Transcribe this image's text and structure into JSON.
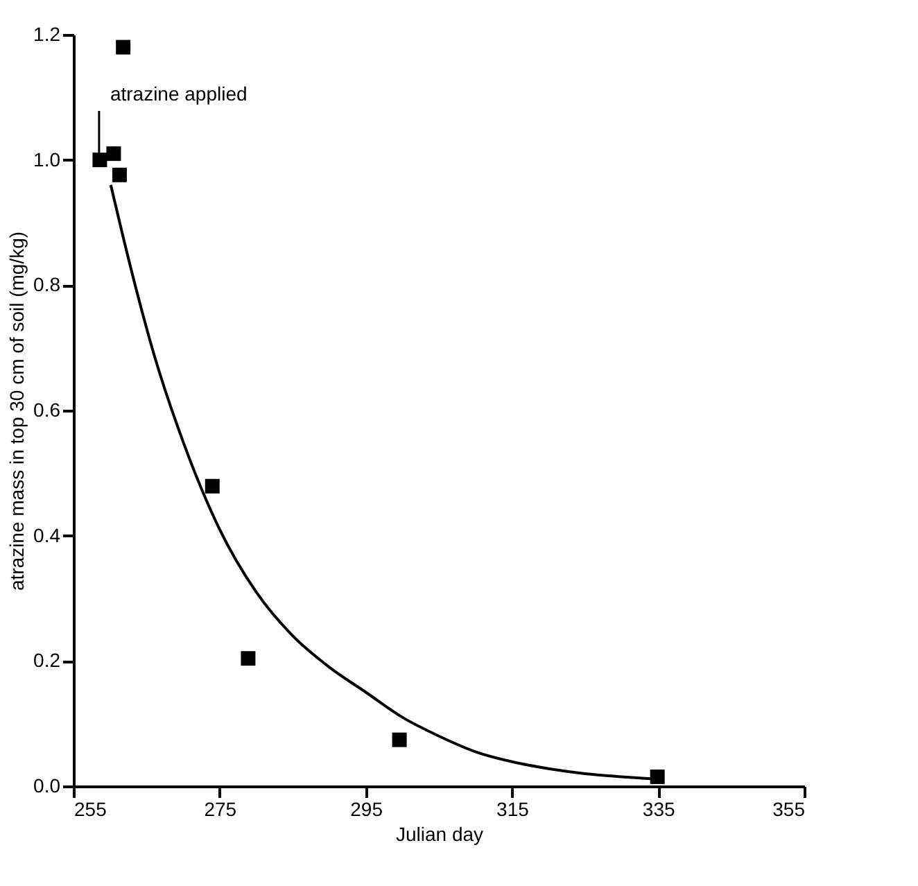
{
  "chart_data": {
    "type": "scatter",
    "xlabel": "Julian day",
    "ylabel": "atrazine mass in top 30 cm of soil (mg/kg)",
    "xlim": [
      255,
      355
    ],
    "xticks": [
      255,
      275,
      295,
      315,
      335,
      355
    ],
    "ylim": [
      0,
      1.2
    ],
    "yticks": [
      {
        "value": 0,
        "label": "0.0"
      },
      0.2,
      0.4,
      0.6,
      0.8,
      {
        "value": 1.0,
        "label": "1.0"
      },
      1.2
    ],
    "grid": false,
    "series": [
      {
        "marker": "square",
        "color": "#000000",
        "x": [
          258.6,
          260.5,
          261.3,
          261.8,
          274,
          278.9,
          299.6,
          334.9
        ],
        "values": [
          1.0,
          1.01,
          0.976,
          1.18,
          0.479,
          0.204,
          0.074,
          0.015
        ]
      },
      {
        "type": "line",
        "color": "#000000",
        "line_style": "solid",
        "x": [
          260.1,
          263,
          266,
          270,
          275,
          280,
          285,
          290,
          295,
          300,
          305,
          310,
          315,
          320,
          325,
          330,
          335
        ],
        "values": [
          0.96,
          0.82,
          0.69,
          0.55,
          0.41,
          0.31,
          0.24,
          0.19,
          0.15,
          0.11,
          0.08,
          0.055,
          0.039,
          0.028,
          0.02,
          0.015,
          0.011
        ]
      }
    ],
    "annotations": [
      {
        "text": "atrazine applied",
        "x": 258.5,
        "y": 1.0
      }
    ]
  }
}
